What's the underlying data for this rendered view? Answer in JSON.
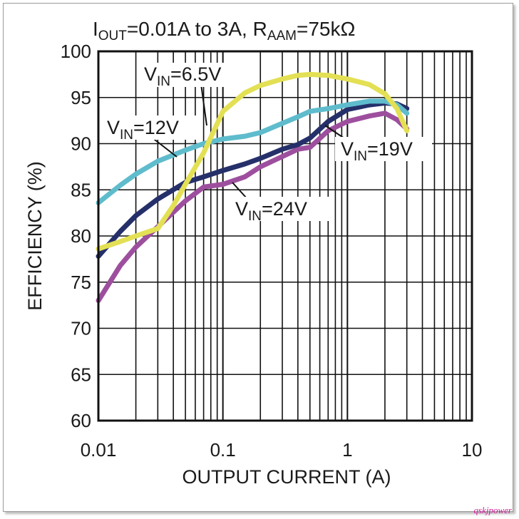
{
  "chart_data": {
    "type": "line",
    "title": {
      "i_main": "I",
      "i_sub": "OUT",
      "range": "=0.01A to 3A, R",
      "r_sub": "AAM",
      "r_val": "=75kΩ"
    },
    "xlabel": "OUTPUT CURRENT (A)",
    "ylabel": "EFFICIENCY (%)",
    "xscale": "log",
    "xlim": [
      0.01,
      10
    ],
    "ylim": [
      60,
      100
    ],
    "x_ticks": [
      "0.01",
      "0.1",
      "1",
      "10"
    ],
    "y_ticks": [
      "60",
      "65",
      "70",
      "75",
      "80",
      "85",
      "90",
      "95",
      "100"
    ],
    "grid": true,
    "series": [
      {
        "key": "v24",
        "label_main": "V",
        "label_sub": "IN",
        "label_rest": "=24V",
        "color": "#9d4f9e",
        "x": [
          0.01,
          0.015,
          0.02,
          0.03,
          0.05,
          0.07,
          0.1,
          0.15,
          0.2,
          0.3,
          0.4,
          0.5,
          0.7,
          1.0,
          1.5,
          2.0,
          2.5,
          3.0
        ],
        "y": [
          73.0,
          76.8,
          78.8,
          81.0,
          83.8,
          85.3,
          85.6,
          86.4,
          87.5,
          88.6,
          89.4,
          89.6,
          91.4,
          92.4,
          93.0,
          93.3,
          92.6,
          91.6
        ]
      },
      {
        "key": "v19",
        "label_main": "V",
        "label_sub": "IN",
        "label_rest": "=19V",
        "color": "#25306a",
        "x": [
          0.01,
          0.015,
          0.02,
          0.03,
          0.05,
          0.07,
          0.1,
          0.15,
          0.2,
          0.3,
          0.4,
          0.5,
          0.7,
          1.0,
          1.5,
          2.0,
          2.5,
          3.0
        ],
        "y": [
          77.8,
          80.5,
          82.2,
          84.0,
          85.8,
          86.4,
          87.1,
          87.8,
          88.4,
          89.4,
          89.9,
          90.6,
          92.4,
          93.7,
          94.2,
          94.4,
          94.3,
          93.8
        ]
      },
      {
        "key": "v12",
        "label_main": "V",
        "label_sub": "IN",
        "label_rest": "=12V",
        "color": "#5fbccc",
        "x": [
          0.01,
          0.015,
          0.02,
          0.03,
          0.05,
          0.07,
          0.1,
          0.15,
          0.2,
          0.3,
          0.4,
          0.5,
          0.7,
          1.0,
          1.5,
          2.0,
          2.5,
          3.0
        ],
        "y": [
          83.6,
          85.5,
          86.7,
          88.1,
          89.3,
          90.0,
          90.5,
          90.8,
          91.2,
          92.2,
          92.9,
          93.5,
          93.8,
          94.2,
          94.6,
          94.6,
          94.2,
          93.3
        ]
      },
      {
        "key": "v65",
        "label_main": "V",
        "label_sub": "IN",
        "label_rest": "=6.5V",
        "color": "#e3e055",
        "x": [
          0.01,
          0.015,
          0.02,
          0.03,
          0.04,
          0.05,
          0.07,
          0.1,
          0.15,
          0.2,
          0.3,
          0.4,
          0.5,
          0.7,
          1.0,
          1.5,
          2.0,
          2.5,
          3.0
        ],
        "y": [
          78.6,
          79.4,
          80.0,
          80.8,
          83.3,
          85.6,
          89.0,
          93.5,
          95.5,
          96.3,
          97.0,
          97.4,
          97.5,
          97.4,
          97.0,
          96.4,
          95.4,
          93.8,
          91.4
        ]
      }
    ]
  }
}
